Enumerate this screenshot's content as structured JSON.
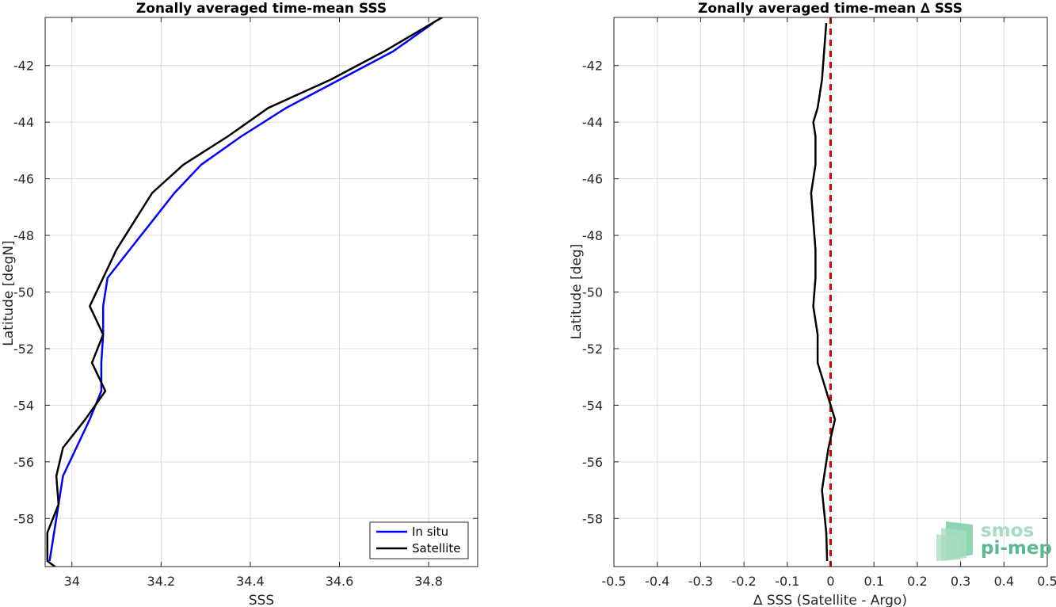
{
  "chart_data": [
    {
      "type": "line",
      "title": "Zonally averaged time-mean SSS",
      "xlabel": "SSS",
      "ylabel": "Latitude [degN]",
      "xlim": [
        33.94,
        34.91
      ],
      "ylim": [
        -59.7,
        -40.3
      ],
      "xticks": [
        34,
        34.2,
        34.4,
        34.6,
        34.8
      ],
      "xtick_labels": [
        "34",
        "34.2",
        "34.4",
        "34.6",
        "34.8"
      ],
      "yticks": [
        -42,
        -44,
        -46,
        -48,
        -50,
        -52,
        -54,
        -56,
        -58
      ],
      "ytick_labels": [
        "-42",
        "-44",
        "-46",
        "-48",
        "-50",
        "-52",
        "-54",
        "-56",
        "-58"
      ],
      "grid": true,
      "legend_position": "bottom-right",
      "series": [
        {
          "name": "In situ",
          "color": "#0000ff",
          "x": [
            34.81,
            34.72,
            34.6,
            34.48,
            34.38,
            34.29,
            34.23,
            34.18,
            34.13,
            34.08,
            34.07,
            34.07,
            34.066,
            34.066,
            34.04,
            34.01,
            33.98,
            33.97,
            33.96,
            33.95
          ],
          "y": [
            -40.5,
            -41.5,
            -42.5,
            -43.5,
            -44.5,
            -45.5,
            -46.5,
            -47.5,
            -48.5,
            -49.5,
            -50.5,
            -51.5,
            -52.5,
            -53.5,
            -54.5,
            -55.5,
            -56.5,
            -57.5,
            -58.5,
            -59.5
          ]
        },
        {
          "name": "Satellite",
          "color": "#000000",
          "x": [
            34.83,
            34.7,
            34.58,
            34.44,
            34.35,
            34.25,
            34.18,
            34.14,
            34.1,
            34.07,
            34.04,
            34.07,
            34.045,
            34.075,
            34.03,
            33.98,
            33.965,
            33.97,
            33.945,
            33.945,
            33.97
          ],
          "y": [
            -40.3,
            -41.5,
            -42.5,
            -43.5,
            -44.5,
            -45.5,
            -46.5,
            -47.5,
            -48.5,
            -49.5,
            -50.5,
            -51.5,
            -52.5,
            -53.5,
            -54.5,
            -55.5,
            -56.5,
            -57.5,
            -58.5,
            -59.5,
            -59.8
          ]
        }
      ]
    },
    {
      "type": "line",
      "title": "Zonally averaged time-mean ∆ SSS",
      "xlabel": "∆ SSS (Satellite - Argo)",
      "ylabel": "Latitude [deg]",
      "xlim": [
        -0.5,
        0.5
      ],
      "ylim": [
        -59.7,
        -40.3
      ],
      "xticks": [
        -0.5,
        -0.4,
        -0.3,
        -0.2,
        -0.1,
        0,
        0.1,
        0.2,
        0.3,
        0.4,
        0.5
      ],
      "xtick_labels": [
        "-0.5",
        "-0.4",
        "-0.3",
        "-0.2",
        "-0.1",
        "0",
        "0.1",
        "0.2",
        "0.3",
        "0.4",
        "0.5"
      ],
      "yticks": [
        -42,
        -44,
        -46,
        -48,
        -50,
        -52,
        -54,
        -56,
        -58
      ],
      "ytick_labels": [
        "-42",
        "-44",
        "-46",
        "-48",
        "-50",
        "-52",
        "-54",
        "-56",
        "-58"
      ],
      "grid": true,
      "reference_line": {
        "x": 0,
        "color": "#e00000",
        "style": "dashed"
      },
      "series": [
        {
          "color": "#000000",
          "x": [
            -0.01,
            -0.015,
            -0.02,
            -0.03,
            -0.04,
            -0.035,
            -0.035,
            -0.045,
            -0.04,
            -0.035,
            -0.035,
            -0.04,
            -0.03,
            -0.03,
            -0.01,
            0.01,
            -0.005,
            -0.015,
            -0.02,
            -0.01,
            -0.008
          ],
          "y": [
            -40.5,
            -41.5,
            -42.5,
            -43.5,
            -44.0,
            -44.5,
            -45.5,
            -46.5,
            -47.5,
            -48.5,
            -49.5,
            -50.5,
            -51.5,
            -52.5,
            -53.5,
            -54.5,
            -55.5,
            -56.5,
            -57.0,
            -58.5,
            -59.5
          ]
        }
      ]
    }
  ],
  "logo": {
    "line1": "smos",
    "line2": "pi-mep",
    "colors": {
      "text": "#5db890",
      "light": "#a8dcc0",
      "mid": "#7ccca4",
      "dark": "#55b98c"
    }
  }
}
